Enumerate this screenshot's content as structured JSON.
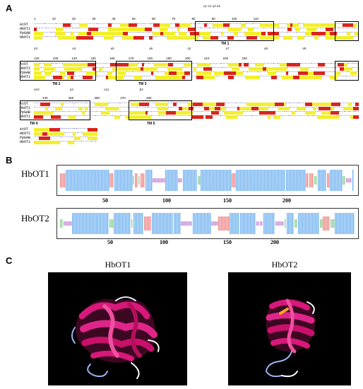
{
  "panels": {
    "a": {
      "letter": "A"
    },
    "b": {
      "letter": "B"
    },
    "c": {
      "letter": "C"
    }
  },
  "alignment": {
    "sequence_names": [
      "AtOT",
      "HbOT2",
      "PpGAB",
      "HbOT1"
    ],
    "block1": {
      "ruler": "1  10  20  30  40  50  60  70  80  90  100  110",
      "ss": "η1  α1  η3  α2",
      "tm_labels": [
        "TM 1"
      ]
    },
    "block2": {
      "ruler": "120  130  140  150  160  170  180  190  200  210  220  230",
      "ss": "α3  α4  α5  α6  η2  α7  α8  α9",
      "tm_labels": [
        "TM 2",
        "TM 3"
      ]
    },
    "block3": {
      "ruler": "240  250  260  270  280",
      "ss": "α10  η3  α11  β4",
      "tm_labels": [
        "TM 4",
        "TM 5"
      ]
    },
    "block4": {}
  },
  "tracks": {
    "hbot1": {
      "name": "HbOT1",
      "ticks": [
        "50",
        "100",
        "150",
        "200"
      ]
    },
    "hbot2": {
      "name": "HbOT2",
      "ticks": [
        "50",
        "100",
        "150",
        "200"
      ]
    }
  },
  "structures": {
    "left": {
      "title": "HbOT1"
    },
    "right": {
      "title": "HbOT2"
    }
  },
  "colors": {
    "helix": "#74b4f0",
    "strand": "#ee8a8a",
    "coil": "#c98ad8",
    "turn": "#8fd08f",
    "conserved": "#d8251e",
    "similar": "#f3ef2c",
    "protein": "#d8187a"
  }
}
